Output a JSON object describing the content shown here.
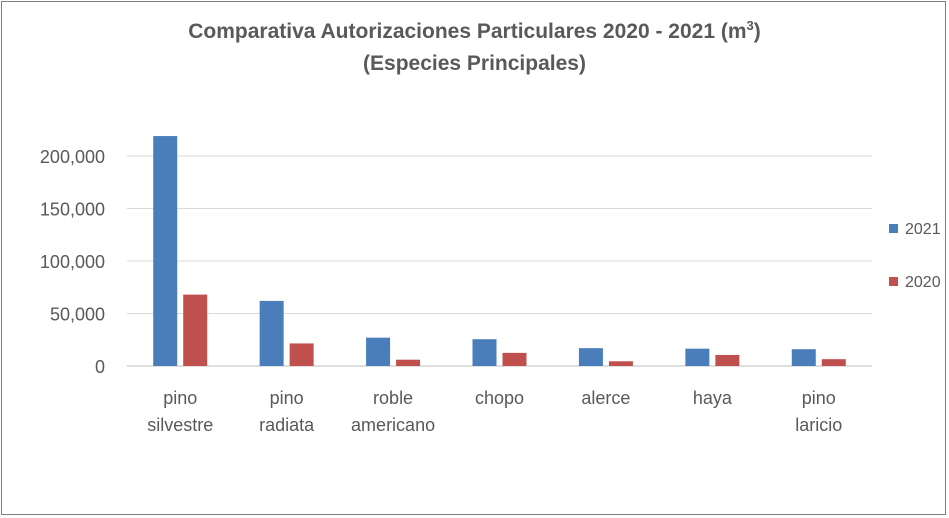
{
  "chart_data": {
    "type": "bar",
    "title_line1": "Comparativa Autorizaciones Particulares 2020 - 2021 (m",
    "title_sup": "3",
    "title_close": ")",
    "title_line2": "(Especies Principales)",
    "categories": [
      [
        "pino",
        "silvestre"
      ],
      [
        "pino",
        "radiata"
      ],
      [
        "roble",
        "americano"
      ],
      [
        "chopo"
      ],
      [
        "alerce"
      ],
      [
        "haya"
      ],
      [
        "pino",
        "laricio"
      ]
    ],
    "series": [
      {
        "name": "2021",
        "color": "#4a7ebb",
        "values": [
          219000,
          62000,
          27000,
          25500,
          17000,
          16500,
          16000
        ]
      },
      {
        "name": "2020",
        "color": "#c0504d",
        "values": [
          68000,
          21500,
          6000,
          12500,
          4500,
          10500,
          6500
        ]
      }
    ],
    "yticks": [
      "0",
      "50,000",
      "100,000",
      "150,000",
      "200,000"
    ],
    "ylim": [
      0,
      230000
    ],
    "grid": true,
    "legend_position": "right"
  }
}
